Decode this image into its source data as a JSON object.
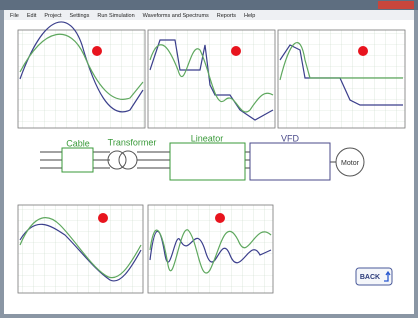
{
  "menu": [
    "File",
    "Edit",
    "Project",
    "Settings",
    "Run Simulation",
    "Waveforms and Spectrums",
    "Reports",
    "Help"
  ],
  "diagram": {
    "cable": "Cable",
    "transformer": "Transformer",
    "lineator": "Lineator",
    "vfd": "VFD",
    "motor": "Motor"
  },
  "button": "BACK"
}
